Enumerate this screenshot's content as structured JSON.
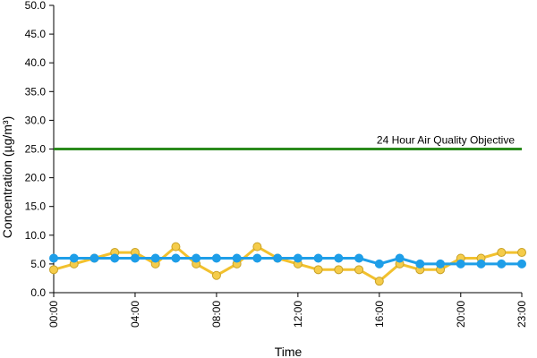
{
  "chart_data": {
    "type": "line",
    "title": "",
    "xlabel": "Time",
    "ylabel": "Concentration (µg/m³)",
    "ylim": [
      0,
      50
    ],
    "y_ticks": [
      "0.0",
      "5.0",
      "10.0",
      "15.0",
      "20.0",
      "25.0",
      "30.0",
      "35.0",
      "40.0",
      "45.0",
      "50.0"
    ],
    "x": [
      "00:00",
      "01:00",
      "02:00",
      "03:00",
      "04:00",
      "05:00",
      "06:00",
      "07:00",
      "08:00",
      "09:00",
      "10:00",
      "11:00",
      "12:00",
      "13:00",
      "14:00",
      "15:00",
      "16:00",
      "17:00",
      "18:00",
      "19:00",
      "20:00",
      "21:00",
      "22:00",
      "23:00"
    ],
    "x_tick_labels": [
      "00:00",
      "04:00",
      "08:00",
      "12:00",
      "16:00",
      "20:00",
      "23:00"
    ],
    "grid": false,
    "legend": "none",
    "series": [
      {
        "color": "#f2c12e",
        "marker_fill": "#f5cc4a",
        "marker_edge": "#c9a227",
        "values": [
          4,
          5,
          6,
          7,
          7,
          5,
          8,
          5,
          3,
          5,
          8,
          6,
          5,
          4,
          4,
          4,
          2,
          5,
          4,
          4,
          6,
          6,
          7,
          7
        ]
      },
      {
        "color": "#1e9ee8",
        "marker_fill": "#1e9ee8",
        "marker_edge": "#1e9ee8",
        "values": [
          6,
          6,
          6,
          6,
          6,
          6,
          6,
          6,
          6,
          6,
          6,
          6,
          6,
          6,
          6,
          6,
          5,
          6,
          5,
          5,
          5,
          5,
          5,
          5
        ]
      }
    ],
    "reference_line": {
      "value": 25,
      "label": "24 Hour Air Quality Objective",
      "color": "#2a8a1c"
    }
  }
}
